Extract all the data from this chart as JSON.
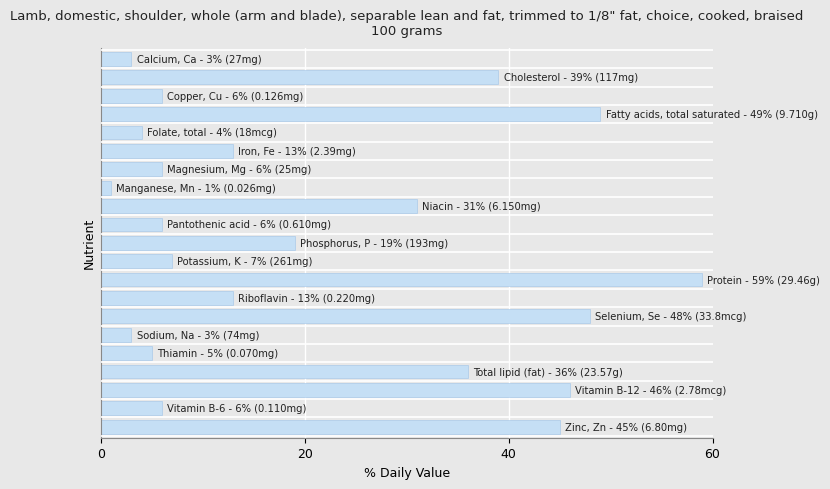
{
  "title": "Lamb, domestic, shoulder, whole (arm and blade), separable lean and fat, trimmed to 1/8\" fat, choice, cooked, braised\n100 grams",
  "xlabel": "% Daily Value",
  "ylabel": "Nutrient",
  "background_color": "#e8e8e8",
  "bar_color": "#c5dff5",
  "bar_edge_color": "#a0c4e8",
  "xlim": [
    0,
    60
  ],
  "nutrients": [
    {
      "label": "Calcium, Ca - 3% (27mg)",
      "value": 3
    },
    {
      "label": "Cholesterol - 39% (117mg)",
      "value": 39
    },
    {
      "label": "Copper, Cu - 6% (0.126mg)",
      "value": 6
    },
    {
      "label": "Fatty acids, total saturated - 49% (9.710g)",
      "value": 49
    },
    {
      "label": "Folate, total - 4% (18mcg)",
      "value": 4
    },
    {
      "label": "Iron, Fe - 13% (2.39mg)",
      "value": 13
    },
    {
      "label": "Magnesium, Mg - 6% (25mg)",
      "value": 6
    },
    {
      "label": "Manganese, Mn - 1% (0.026mg)",
      "value": 1
    },
    {
      "label": "Niacin - 31% (6.150mg)",
      "value": 31
    },
    {
      "label": "Pantothenic acid - 6% (0.610mg)",
      "value": 6
    },
    {
      "label": "Phosphorus, P - 19% (193mg)",
      "value": 19
    },
    {
      "label": "Potassium, K - 7% (261mg)",
      "value": 7
    },
    {
      "label": "Protein - 59% (29.46g)",
      "value": 59
    },
    {
      "label": "Riboflavin - 13% (0.220mg)",
      "value": 13
    },
    {
      "label": "Selenium, Se - 48% (33.8mcg)",
      "value": 48
    },
    {
      "label": "Sodium, Na - 3% (74mg)",
      "value": 3
    },
    {
      "label": "Thiamin - 5% (0.070mg)",
      "value": 5
    },
    {
      "label": "Total lipid (fat) - 36% (23.57g)",
      "value": 36
    },
    {
      "label": "Vitamin B-12 - 46% (2.78mcg)",
      "value": 46
    },
    {
      "label": "Vitamin B-6 - 6% (0.110mg)",
      "value": 6
    },
    {
      "label": "Zinc, Zn - 45% (6.80mg)",
      "value": 45
    }
  ]
}
